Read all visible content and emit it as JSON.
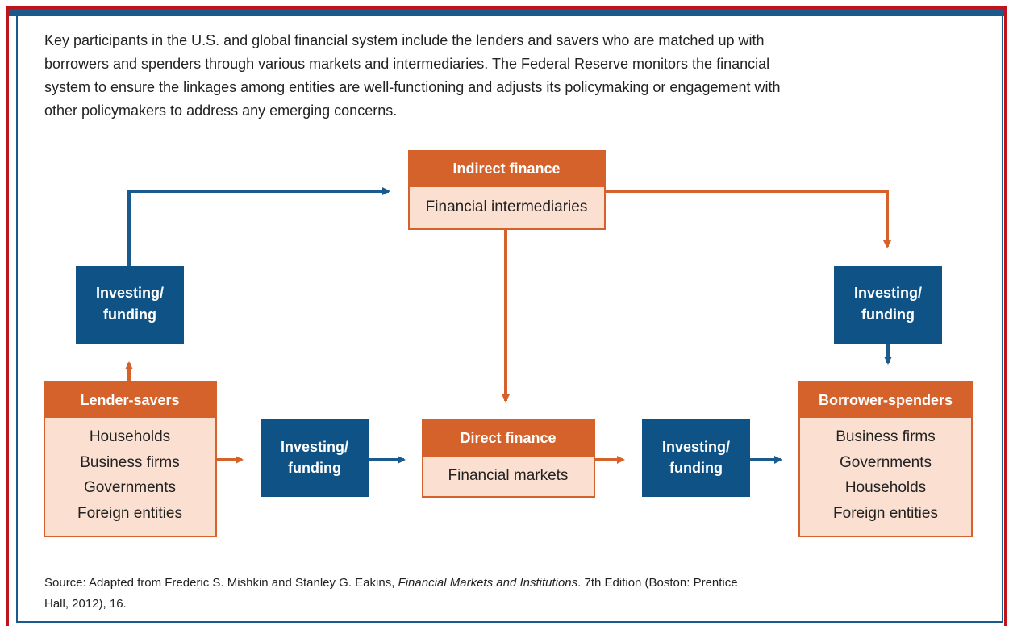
{
  "intro": {
    "lines": [
      "Key participants in the U.S. and global financial system include the lenders and savers who are matched up with",
      "borrowers and spenders through various markets and intermediaries. The Federal Reserve monitors the financial",
      "system to ensure the linkages among entities are well-functioning and adjusts its policymaking or engagement with",
      "other policymakers to address any emerging concerns."
    ]
  },
  "nodes": {
    "indirect_finance": {
      "title": "Indirect finance",
      "body": "Financial intermediaries"
    },
    "direct_finance": {
      "title": "Direct finance",
      "body": "Financial markets"
    },
    "lender_savers": {
      "title": "Lender-savers",
      "items": [
        "Households",
        "Business firms",
        "Governments",
        "Foreign entities"
      ]
    },
    "borrower_spenders": {
      "title": "Borrower-spenders",
      "items": [
        "Business firms",
        "Governments",
        "Households",
        "Foreign entities"
      ]
    },
    "investing_funding": [
      {
        "lines": [
          "Investing/",
          "funding"
        ]
      },
      {
        "lines": [
          "Investing/",
          "funding"
        ]
      },
      {
        "lines": [
          "Investing/",
          "funding"
        ]
      },
      {
        "lines": [
          "Investing/",
          "funding"
        ]
      }
    ]
  },
  "source": {
    "before": "Source: Adapted from Frederic S. Mishkin and Stanley G. Eakins, ",
    "italic": "Financial Markets and Institutions",
    "after": ". 7th Edition (Boston: Prentice",
    "line2": "Hall, 2012), 16."
  }
}
